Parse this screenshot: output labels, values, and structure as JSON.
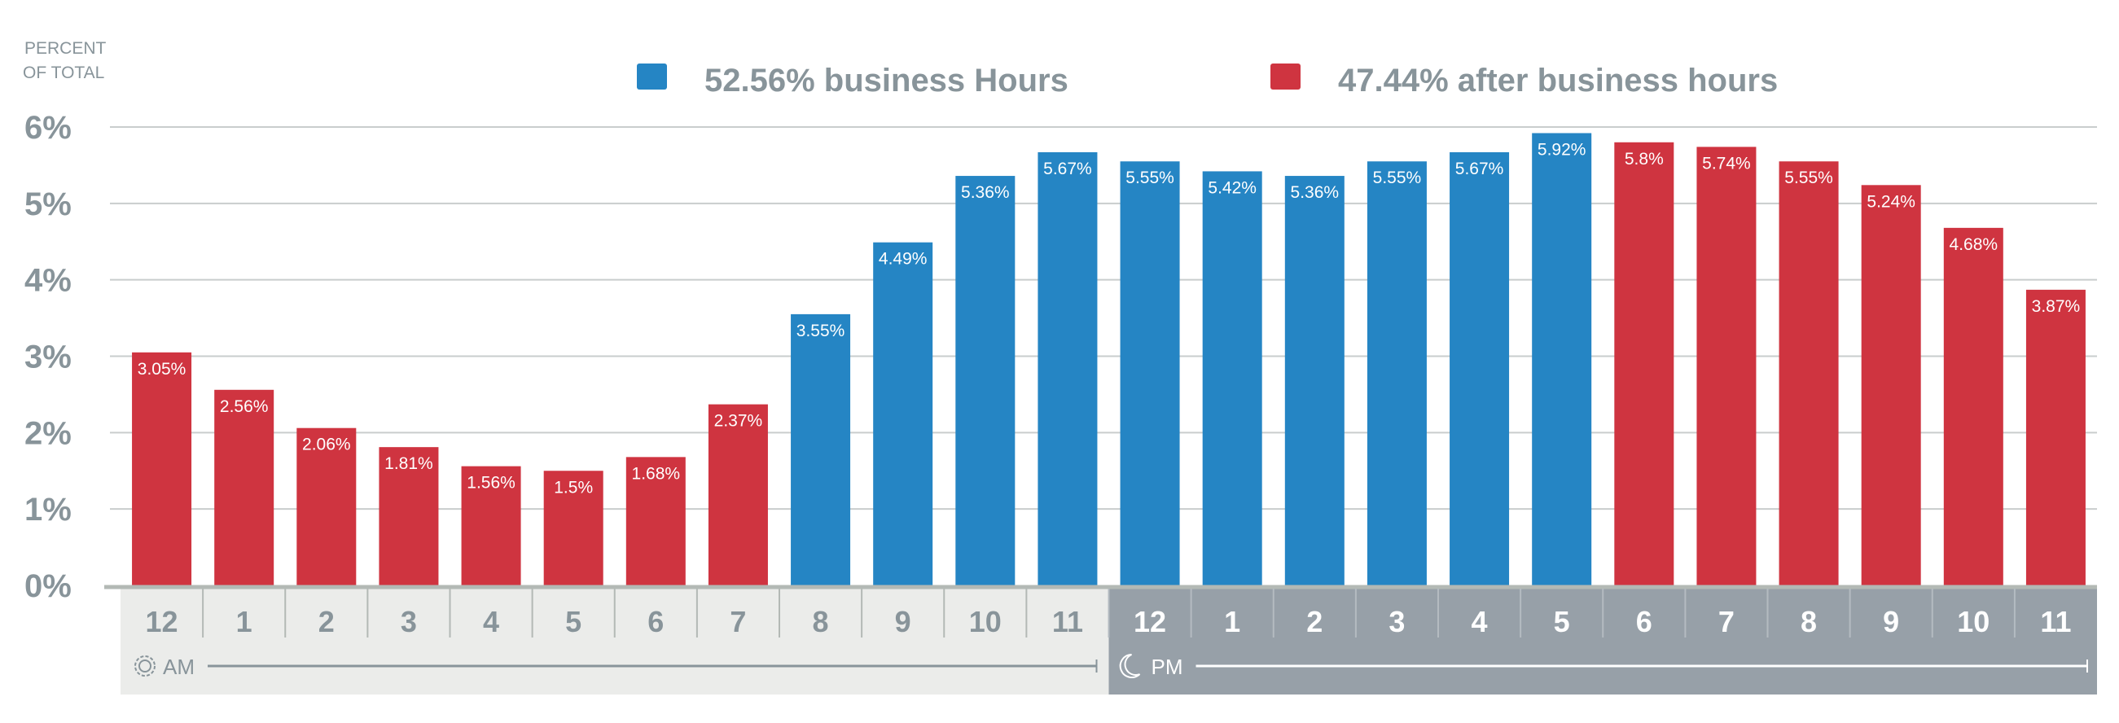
{
  "chart_data": {
    "type": "bar",
    "ylabel_lines": [
      "PERCENT",
      "OF TOTAL"
    ],
    "ylim": [
      0,
      6
    ],
    "yticks": [
      "0%",
      "1%",
      "2%",
      "3%",
      "4%",
      "5%",
      "6%"
    ],
    "grid": true,
    "legend_placement": "top-center",
    "legend": [
      {
        "label": "52.56% business Hours",
        "color": "#2585c4"
      },
      {
        "label": "47.44% after business hours",
        "color": "#cf3440"
      }
    ],
    "categories": [
      "12",
      "1",
      "2",
      "3",
      "4",
      "5",
      "6",
      "7",
      "8",
      "9",
      "10",
      "11",
      "12",
      "1",
      "2",
      "3",
      "4",
      "5",
      "6",
      "7",
      "8",
      "9",
      "10",
      "11"
    ],
    "values": [
      3.05,
      2.56,
      2.06,
      1.81,
      1.56,
      1.5,
      1.68,
      2.37,
      3.55,
      4.49,
      5.36,
      5.67,
      5.55,
      5.42,
      5.36,
      5.55,
      5.67,
      5.92,
      5.8,
      5.74,
      5.55,
      5.24,
      4.68,
      3.87
    ],
    "value_labels": [
      "3.05%",
      "2.56%",
      "2.06%",
      "1.81%",
      "1.56%",
      "1.5%",
      "1.68%",
      "2.37%",
      "3.55%",
      "4.49%",
      "5.36%",
      "5.67%",
      "5.55%",
      "5.42%",
      "5.36%",
      "5.55%",
      "5.67%",
      "5.92%",
      "5.8%",
      "5.74%",
      "5.55%",
      "5.24%",
      "4.68%",
      "3.87%"
    ],
    "series_index": [
      1,
      1,
      1,
      1,
      1,
      1,
      1,
      1,
      0,
      0,
      0,
      0,
      0,
      0,
      0,
      0,
      0,
      0,
      1,
      1,
      1,
      1,
      1,
      1
    ],
    "period_groups": [
      {
        "label": "AM",
        "icon": "sun-icon",
        "bg": "#ebecea",
        "fg": "#88949a"
      },
      {
        "label": "PM",
        "icon": "moon-icon",
        "bg": "#97a0a8",
        "fg": "#ffffff"
      }
    ]
  }
}
